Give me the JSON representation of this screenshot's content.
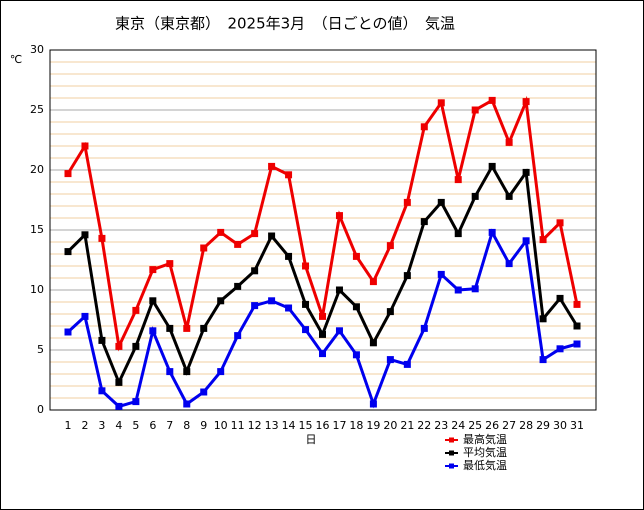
{
  "chart_data": {
    "type": "line",
    "title": "東京（東京都）　2025年3月　（日ごとの値）　気温",
    "y_label": "℃",
    "x_label": "日",
    "categories": [
      "1",
      "2",
      "3",
      "4",
      "5",
      "6",
      "7",
      "8",
      "9",
      "10",
      "11",
      "12",
      "13",
      "14",
      "15",
      "16",
      "17",
      "18",
      "19",
      "20",
      "21",
      "22",
      "23",
      "24",
      "25",
      "26",
      "27",
      "28",
      "29",
      "30",
      "31"
    ],
    "series": [
      {
        "name": "最高気温",
        "color": "#ee0000",
        "values": [
          19.7,
          22.0,
          14.3,
          5.3,
          8.3,
          11.7,
          12.2,
          6.8,
          13.5,
          14.8,
          13.8,
          14.7,
          20.3,
          19.6,
          12.0,
          7.8,
          16.2,
          12.8,
          10.7,
          13.7,
          17.3,
          23.6,
          25.6,
          19.2,
          25.0,
          25.8,
          22.3,
          25.7,
          14.2,
          15.6,
          8.8
        ]
      },
      {
        "name": "平均気温",
        "color": "#000000",
        "values": [
          13.2,
          14.6,
          5.8,
          2.3,
          5.3,
          9.1,
          6.8,
          3.2,
          6.8,
          9.1,
          10.3,
          11.6,
          14.5,
          12.8,
          8.8,
          6.3,
          10.0,
          8.6,
          5.6,
          8.2,
          11.2,
          15.7,
          17.3,
          14.7,
          17.8,
          20.3,
          17.8,
          19.8,
          7.6,
          9.3,
          7.0
        ]
      },
      {
        "name": "最低気温",
        "color": "#0000ee",
        "values": [
          6.5,
          7.8,
          1.6,
          0.3,
          0.7,
          6.6,
          3.2,
          0.5,
          1.5,
          3.2,
          6.2,
          8.7,
          9.1,
          8.5,
          6.7,
          4.7,
          6.6,
          4.6,
          0.5,
          4.2,
          3.8,
          6.8,
          11.3,
          10.0,
          10.1,
          14.8,
          12.2,
          14.1,
          4.2,
          5.1,
          5.5
        ]
      }
    ],
    "ylim": [
      0,
      30
    ],
    "yticks": [
      0,
      5,
      10,
      15,
      20,
      25,
      30
    ],
    "grid": true
  }
}
